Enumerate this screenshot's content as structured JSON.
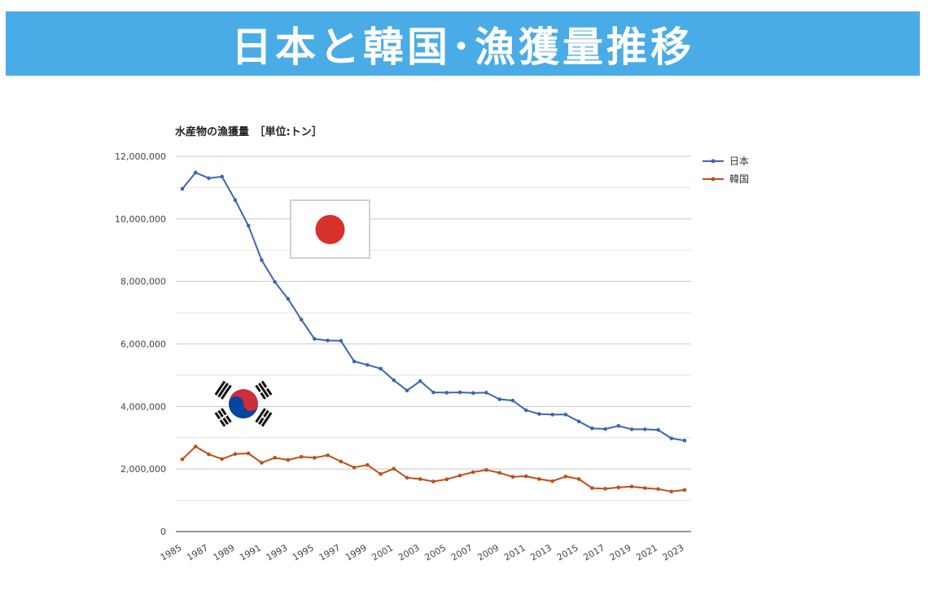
{
  "banner": {
    "title": "日本と韓国･漁獲量推移"
  },
  "chart_data": {
    "type": "line",
    "title": "水産物の漁獲量　［単位:トン］",
    "xlabel": "",
    "ylabel": "",
    "ylim": [
      0,
      12000000
    ],
    "yticks": [
      0,
      2000000,
      4000000,
      6000000,
      8000000,
      10000000,
      12000000
    ],
    "ytick_labels": [
      "0",
      "2,000,000",
      "4,000,000",
      "6,000,000",
      "8,000,000",
      "10,000,000",
      "12,000,000"
    ],
    "grid": true,
    "legend_position": "top-right",
    "x": [
      1985,
      1986,
      1987,
      1988,
      1989,
      1990,
      1991,
      1992,
      1993,
      1994,
      1995,
      1996,
      1997,
      1998,
      1999,
      2000,
      2001,
      2002,
      2003,
      2004,
      2005,
      2006,
      2007,
      2008,
      2009,
      2010,
      2011,
      2012,
      2013,
      2014,
      2015,
      2016,
      2017,
      2018,
      2019,
      2020,
      2021,
      2022,
      2023
    ],
    "xtick_labels": [
      "1985",
      "1987",
      "1989",
      "1991",
      "1993",
      "1995",
      "1997",
      "1999",
      "2001",
      "2003",
      "2005",
      "2007",
      "2009",
      "2011",
      "2013",
      "2015",
      "2017",
      "2019",
      "2021",
      "2023"
    ],
    "series": [
      {
        "name": "日本",
        "color": "#3d66b0",
        "values": [
          10960000,
          11480000,
          11300000,
          11350000,
          10600000,
          9780000,
          8680000,
          7980000,
          7440000,
          6780000,
          6160000,
          6110000,
          6100000,
          5440000,
          5330000,
          5210000,
          4840000,
          4510000,
          4810000,
          4450000,
          4440000,
          4450000,
          4430000,
          4440000,
          4230000,
          4190000,
          3880000,
          3760000,
          3740000,
          3740000,
          3520000,
          3300000,
          3280000,
          3380000,
          3270000,
          3270000,
          3250000,
          2980000,
          2910000
        ]
      },
      {
        "name": "韓国",
        "color": "#c14d1c",
        "values": [
          2310000,
          2720000,
          2470000,
          2320000,
          2480000,
          2500000,
          2200000,
          2360000,
          2290000,
          2390000,
          2360000,
          2440000,
          2240000,
          2050000,
          2130000,
          1840000,
          2010000,
          1720000,
          1680000,
          1600000,
          1670000,
          1790000,
          1900000,
          1970000,
          1880000,
          1750000,
          1770000,
          1680000,
          1610000,
          1760000,
          1680000,
          1390000,
          1370000,
          1410000,
          1440000,
          1390000,
          1360000,
          1280000,
          1330000
        ]
      }
    ]
  },
  "icons": {
    "japan_flag": "japan-flag-icon",
    "korea_flag": "korea-flag-icon"
  }
}
